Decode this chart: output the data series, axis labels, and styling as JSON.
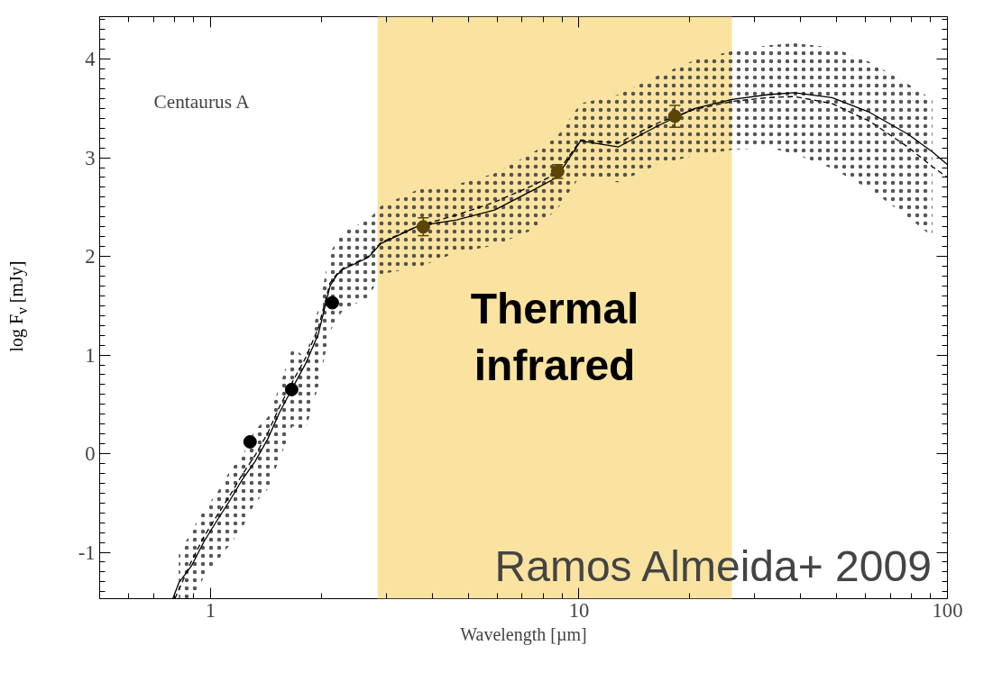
{
  "chart_data": {
    "type": "line",
    "xlabel": "Wavelength [µm]",
    "ylabel": "log F$_{ν}$ [mJy]",
    "log": "x",
    "xlim": [
      0.5,
      100
    ],
    "xticks": [
      1,
      10,
      100
    ],
    "ylim": [
      -1.47,
      4.43
    ],
    "yticks": [
      -1,
      0,
      1,
      2,
      3,
      4
    ],
    "grid": false,
    "bands": [
      {
        "axis": "x",
        "from": 2.84,
        "to": 26,
        "label": "Thermal\ninfrared",
        "color": "#fae3a0"
      }
    ],
    "annotations": [
      "Centaurus A",
      "Ramos Almeida+ 2009"
    ],
    "series": [
      {
        "type": "line",
        "color": "#000000",
        "line_style": "solid",
        "x": [
          0.79,
          0.82,
          0.89,
          0.96,
          1.04,
          1.13,
          1.22,
          1.32,
          1.43,
          1.54,
          1.67,
          1.81,
          1.96,
          2.11,
          2.2,
          2.29,
          2.48,
          2.68,
          2.9,
          3.67,
          4.66,
          5.9,
          7.4,
          8.7,
          10.1,
          12.8,
          16.3,
          20.6,
          26,
          32.7,
          38.4,
          48.6,
          61.5,
          78,
          91,
          100
        ],
        "values": [
          -1.47,
          -1.31,
          -1.13,
          -0.89,
          -0.68,
          -0.47,
          -0.26,
          -0.08,
          0.15,
          0.42,
          0.67,
          0.91,
          1.21,
          1.7,
          1.81,
          1.87,
          1.93,
          1.99,
          2.13,
          2.31,
          2.37,
          2.47,
          2.66,
          2.8,
          3.17,
          3.11,
          3.32,
          3.5,
          3.59,
          3.64,
          3.66,
          3.61,
          3.46,
          3.24,
          3.06,
          2.93
        ],
        "lower": [
          null,
          -1.47,
          -1.47,
          -1.25,
          -1.09,
          -0.92,
          -0.75,
          -0.5,
          -0.36,
          -0.05,
          0.28,
          0.24,
          0.68,
          1.24,
          null,
          1.46,
          1.52,
          1.58,
          1.82,
          1.89,
          2.04,
          2.11,
          2.26,
          2.47,
          2.82,
          2.75,
          2.93,
          3.02,
          3.08,
          3.1,
          3.04,
          2.89,
          2.68,
          2.4,
          2.2,
          null
        ],
        "upper": [
          null,
          -1.02,
          -0.78,
          -0.57,
          -0.4,
          -0.17,
          -0.02,
          0.24,
          0.37,
          0.68,
          1.08,
          0.97,
          1.47,
          2.04,
          null,
          2.25,
          2.31,
          2.37,
          2.51,
          2.68,
          2.73,
          2.84,
          3.04,
          3.21,
          3.55,
          3.64,
          3.83,
          3.99,
          4.08,
          4.14,
          4.16,
          4.12,
          3.97,
          3.75,
          3.59,
          null
        ]
      },
      {
        "type": "line",
        "color": "#000000",
        "line_style": "dashed",
        "x": [
          0.8,
          0.89,
          0.96,
          1.04,
          1.13,
          1.22,
          1.32,
          1.43,
          1.54,
          1.67,
          1.81,
          1.96,
          2.11,
          2.2,
          2.29,
          2.48,
          2.68,
          2.9,
          3.67,
          4.66,
          5.9,
          7.4,
          8.7,
          10.1,
          12.8,
          16.3,
          20.6,
          26,
          32.7,
          38.4,
          48.6,
          61.5,
          78,
          91,
          100
        ],
        "values": [
          -1.47,
          -1.08,
          -0.84,
          -0.63,
          -0.42,
          -0.21,
          -0.02,
          0.21,
          0.48,
          0.73,
          0.97,
          1.27,
          1.73,
          1.82,
          1.88,
          1.94,
          2.0,
          2.14,
          2.31,
          2.42,
          2.55,
          2.71,
          2.84,
          3.18,
          3.15,
          3.35,
          3.49,
          3.57,
          3.61,
          3.62,
          3.55,
          3.37,
          3.11,
          2.91,
          2.8
        ]
      },
      {
        "type": "scatter",
        "marker": "circle",
        "x": [
          1.28,
          1.66,
          2.14,
          3.78,
          8.75,
          18.2
        ],
        "values": [
          0.12,
          0.65,
          1.53,
          2.3,
          2.86,
          3.42
        ],
        "colors": [
          "#000000",
          "#000000",
          "#000000",
          "#5a4506",
          "#5a4506",
          "#5a4506"
        ],
        "errors": [
          null,
          null,
          null,
          0.09,
          0.07,
          0.11
        ]
      }
    ]
  }
}
